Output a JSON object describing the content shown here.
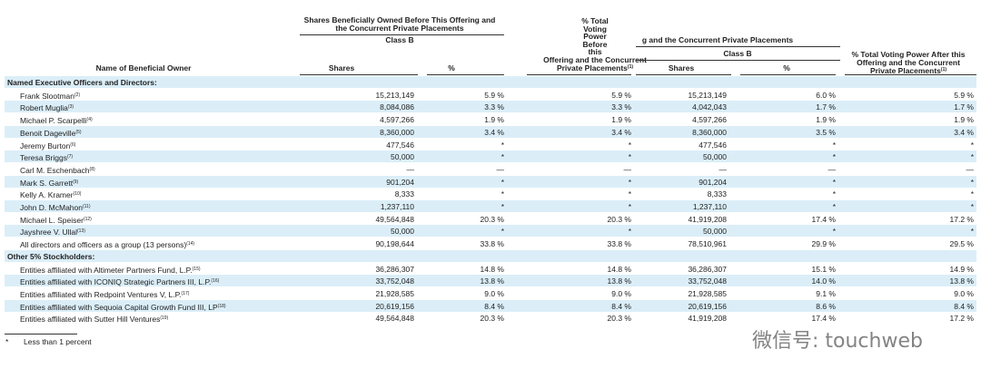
{
  "header": {
    "before_group": [
      "Shares Beneficially Owned Before This Offering and",
      "the Concurrent Private Placements"
    ],
    "before_class": "Class B",
    "voting_before": [
      "% Total",
      "Voting",
      "Power",
      "Before",
      "this",
      "Offering and the Concurrent",
      "Private Placements"
    ],
    "voting_before_note": "(1)",
    "after_group": "g and the Concurrent Private Placements",
    "after_class": "Class B",
    "voting_after": [
      "% Total Voting Power After this",
      "Offering and the Concurrent",
      "Private Placements"
    ],
    "voting_after_note": "(1)",
    "name": "Name of Beneficial Owner",
    "shares_before": "Shares",
    "pct_before": "%",
    "shares_after": "Shares",
    "pct_after": "%"
  },
  "sections": [
    {
      "title": "Named Executive Officers and Directors:",
      "rows": [
        {
          "name": "Frank Slootman",
          "note": "(2)",
          "cells": [
            "15,213,149",
            "5.9 %",
            "5.9 %",
            "15,213,149",
            "6.0 %",
            "5.9 %"
          ]
        },
        {
          "name": "Robert Muglia",
          "note": "(3)",
          "cells": [
            "8,084,086",
            "3.3 %",
            "3.3 %",
            "4,042,043",
            "1.7 %",
            "1.7 %"
          ]
        },
        {
          "name": "Michael P. Scarpelli",
          "note": "(4)",
          "cells": [
            "4,597,266",
            "1.9 %",
            "1.9 %",
            "4,597,266",
            "1.9 %",
            "1.9 %"
          ]
        },
        {
          "name": "Benoit Dageville",
          "note": "(5)",
          "cells": [
            "8,360,000",
            "3.4 %",
            "3.4 %",
            "8,360,000",
            "3.5 %",
            "3.4 %"
          ]
        },
        {
          "name": "Jeremy Burton",
          "note": "(6)",
          "cells": [
            "477,546",
            "*",
            "*",
            "477,546",
            "*",
            "*"
          ]
        },
        {
          "name": "Teresa Briggs",
          "note": "(7)",
          "cells": [
            "50,000",
            "*",
            "*",
            "50,000",
            "*",
            "*"
          ]
        },
        {
          "name": "Carl M. Eschenbach",
          "note": "(8)",
          "cells": [
            "—",
            "—",
            "—",
            "—",
            "—",
            "—"
          ]
        },
        {
          "name": "Mark S. Garrett",
          "note": "(9)",
          "cells": [
            "901,204",
            "*",
            "*",
            "901,204",
            "*",
            "*"
          ]
        },
        {
          "name": "Kelly A. Kramer",
          "note": "(10)",
          "cells": [
            "8,333",
            "*",
            "*",
            "8,333",
            "*",
            "*"
          ]
        },
        {
          "name": "John D. McMahon",
          "note": "(11)",
          "cells": [
            "1,237,110",
            "*",
            "*",
            "1,237,110",
            "*",
            "*"
          ]
        },
        {
          "name": "Michael L. Speiser",
          "note": "(12)",
          "cells": [
            "49,564,848",
            "20.3 %",
            "20.3 %",
            "41,919,208",
            "17.4 %",
            "17.2 %"
          ]
        },
        {
          "name": "Jayshree V. Ullal",
          "note": "(13)",
          "cells": [
            "50,000",
            "*",
            "*",
            "50,000",
            "*",
            "*"
          ]
        },
        {
          "name": "All directors and officers as a group (13 persons)",
          "note": "(14)",
          "cells": [
            "90,198,644",
            "33.8 %",
            "33.8 %",
            "78,510,961",
            "29.9 %",
            "29.5 %"
          ]
        }
      ]
    },
    {
      "title": "Other 5% Stockholders:",
      "rows": [
        {
          "name": "Entities affiliated with Altimeter Partners Fund, L.P.",
          "note": "(15)",
          "cells": [
            "36,286,307",
            "14.8 %",
            "14.8 %",
            "36,286,307",
            "15.1 %",
            "14.9 %"
          ]
        },
        {
          "name": "Entities affiliated with ICONIQ Strategic Partners III, L.P.",
          "note": "(16)",
          "cells": [
            "33,752,048",
            "13.8 %",
            "13.8 %",
            "33,752,048",
            "14.0 %",
            "13.8 %"
          ]
        },
        {
          "name": "Entities affiliated with Redpoint Ventures V, L.P.",
          "note": "(17)",
          "cells": [
            "21,928,585",
            "9.0 %",
            "9.0 %",
            "21,928,585",
            "9.1 %",
            "9.0 %"
          ]
        },
        {
          "name": "Entities affiliated with Sequoia Capital Growth Fund III, LP",
          "note": "(18)",
          "cells": [
            "20,619,156",
            "8.4 %",
            "8.4 %",
            "20,619,156",
            "8.6 %",
            "8.4 %"
          ]
        },
        {
          "name": "Entities affiliated with Sutter Hill Ventures",
          "note": "(19)",
          "cells": [
            "49,564,848",
            "20.3 %",
            "20.3 %",
            "41,919,208",
            "17.4 %",
            "17.2 %"
          ]
        }
      ]
    }
  ],
  "footnote": {
    "mark": "*",
    "text": "Less than 1 percent"
  },
  "watermark": "微信号: touchweb"
}
